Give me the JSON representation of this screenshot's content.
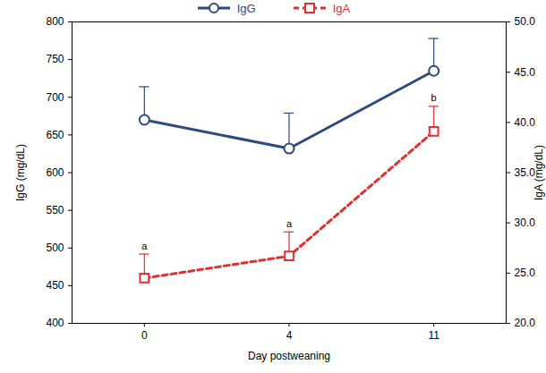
{
  "chart_data": {
    "type": "line",
    "categories": [
      "0",
      "4",
      "11"
    ],
    "x_label": "Day postweaning",
    "y_label": "IgG (mg/dL)",
    "y2_label": "IgA (mg/dL)",
    "ylim": [
      400,
      800
    ],
    "yticks": [
      400,
      450,
      500,
      550,
      600,
      650,
      700,
      750,
      800
    ],
    "y2lim": [
      20,
      50
    ],
    "y2ticks": [
      {
        "value": 20,
        "label": "20.0"
      },
      {
        "value": 25,
        "label": "25.0"
      },
      {
        "value": 30,
        "label": "30.0"
      },
      {
        "value": 35,
        "label": "35.0"
      },
      {
        "value": 40,
        "label": "40.0"
      },
      {
        "value": 45,
        "label": "45.0"
      },
      {
        "value": 50,
        "label": "50.0"
      }
    ],
    "legend": "top",
    "series": [
      {
        "name": "IgG",
        "color": "#2e4a7e",
        "values": [
          670,
          632,
          735
        ],
        "errors": [
          44,
          47,
          43
        ],
        "marker": "circle",
        "line_style": "solid",
        "axis": "y"
      },
      {
        "name": "IgA",
        "color": "#e03131",
        "values": [
          24.5,
          26.7,
          39.1
        ],
        "errors": [
          2.4,
          2.4,
          2.5
        ],
        "annotations": [
          "a",
          "a",
          "b"
        ],
        "marker": "square",
        "line_style": "dashed",
        "axis": "y2"
      }
    ]
  }
}
